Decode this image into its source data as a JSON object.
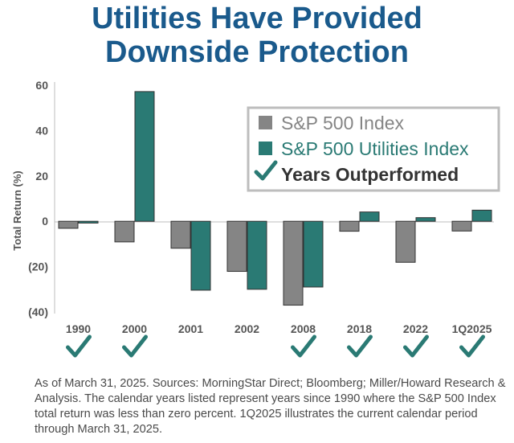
{
  "title_line1": "Utilities Have Provided",
  "title_line2": "Downside Protection",
  "chart_data": {
    "type": "bar",
    "categories": [
      "1990",
      "2000",
      "2001",
      "2002",
      "2008",
      "2018",
      "2022",
      "1Q2025"
    ],
    "series": [
      {
        "name": "S&P 500 Index",
        "color": "#858585",
        "values": [
          -3.1,
          -9.1,
          -11.9,
          -22.1,
          -37.0,
          -4.4,
          -18.1,
          -4.3
        ]
      },
      {
        "name": "S&P 500 Utilities Index",
        "color": "#2a7a74",
        "values": [
          -0.8,
          57.2,
          -30.4,
          -30.0,
          -29.0,
          4.1,
          1.6,
          4.9
        ]
      }
    ],
    "outperformed": [
      true,
      true,
      false,
      false,
      true,
      true,
      true,
      true
    ],
    "outperformed_label": "Years Outperformed",
    "ylabel": "Total Return (%)",
    "ylim": [
      -40,
      60
    ],
    "yticks": [
      60,
      40,
      20,
      0,
      -20,
      -40
    ],
    "ytick_labels": [
      "60",
      "40",
      "20",
      "0",
      "(20)",
      "(40)"
    ],
    "grid": false,
    "legend_position": "top-right"
  },
  "footnote": "As of March 31, 2025. Sources: MorningStar Direct; Bloomberg; Miller/Howard Research & Analysis. The calendar years listed represent years since 1990  where the S&P 500 Index total return was less than zero percent. 1Q2025 illustrates the current calendar period through March 31, 2025."
}
